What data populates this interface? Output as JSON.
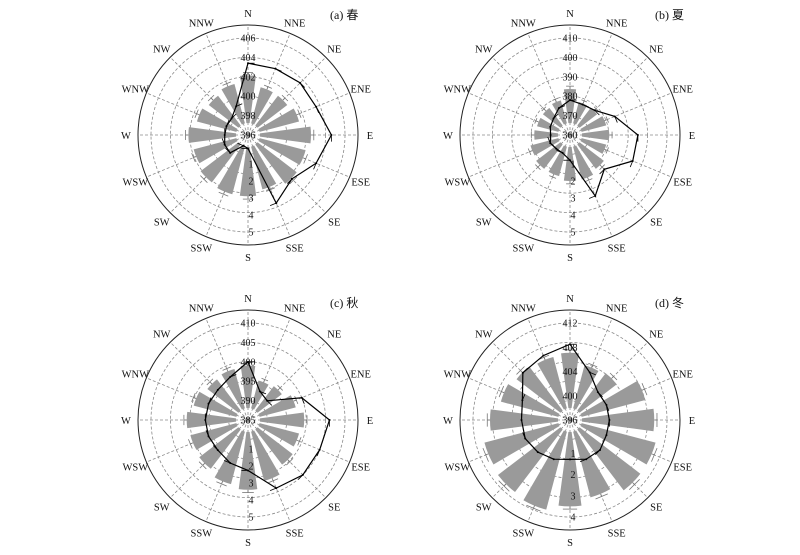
{
  "chart_data": [
    {
      "type": "polar-bar-line",
      "title": "(a) 春",
      "directions": [
        "N",
        "NNE",
        "NE",
        "ENE",
        "E",
        "ESE",
        "SE",
        "SSE",
        "S",
        "SSW",
        "SW",
        "WSW",
        "W",
        "WNW",
        "NW",
        "NNW"
      ],
      "radial_ticks": [
        "396",
        "398",
        "400",
        "402",
        "404",
        "406"
      ],
      "radial_range": [
        396,
        406
      ],
      "bar_ticks": [
        "1",
        "2",
        "3",
        "4",
        "5"
      ],
      "bar_range": [
        0,
        5
      ],
      "bar_values": [
        2.8,
        2.2,
        2.2,
        2.4,
        3.0,
        2.8,
        2.9,
        2.6,
        2.9,
        2.9,
        2.8,
        2.6,
        2.8,
        2.4,
        2.2,
        2.4
      ],
      "line_values": [
        403.4,
        403.4,
        403.6,
        403.6,
        404.6,
        403.6,
        402.4,
        403.6,
        397.4,
        397.2,
        398.6,
        398.6,
        398.4,
        398.4,
        398.4,
        399.2
      ],
      "bar_color": "#9a9a9a",
      "line_color": "#000000"
    },
    {
      "type": "polar-bar-line",
      "title": "(b) 夏",
      "directions": [
        "N",
        "NNE",
        "NE",
        "ENE",
        "E",
        "ESE",
        "SE",
        "SSE",
        "S",
        "SSW",
        "SW",
        "WSW",
        "W",
        "WNW",
        "NW",
        "NNW"
      ],
      "radial_ticks": [
        "360",
        "370",
        "380",
        "390",
        "400",
        "410"
      ],
      "radial_range": [
        360,
        410
      ],
      "bar_ticks": [
        "1",
        "2",
        "3",
        "4",
        "5"
      ],
      "bar_range": [
        0,
        5
      ],
      "bar_values": [
        2.0,
        1.3,
        1.3,
        1.5,
        1.6,
        1.5,
        1.8,
        2.0,
        2.0,
        1.8,
        1.8,
        1.7,
        1.4,
        1.3,
        1.3,
        1.4
      ],
      "line_values": [
        378,
        377,
        378,
        385,
        395,
        395,
        385,
        394,
        373,
        370,
        370,
        371,
        370,
        371,
        372,
        375
      ],
      "bar_color": "#9a9a9a",
      "line_color": "#000000"
    },
    {
      "type": "polar-bar-line",
      "title": "(c) 秋",
      "directions": [
        "N",
        "NNE",
        "NE",
        "ENE",
        "E",
        "ESE",
        "SE",
        "SSE",
        "S",
        "SSW",
        "SW",
        "WSW",
        "W",
        "WNW",
        "NW",
        "NNW"
      ],
      "radial_ticks": [
        "385",
        "390",
        "395",
        "400",
        "405",
        "410"
      ],
      "radial_range": [
        385,
        410
      ],
      "bar_ticks": [
        "1",
        "2",
        "3",
        "4",
        "5"
      ],
      "bar_range": [
        0,
        5
      ],
      "bar_values": [
        2.5,
        1.7,
        1.8,
        2.2,
        2.6,
        2.4,
        2.6,
        3.0,
        3.4,
        3.2,
        2.9,
        2.8,
        2.9,
        2.6,
        2.3,
        2.4
      ],
      "line_values": [
        400,
        393,
        392,
        400,
        406,
        405,
        405,
        404,
        398,
        397,
        396,
        396,
        396,
        396,
        396,
        397
      ],
      "bar_color": "#9a9a9a",
      "line_color": "#000000"
    },
    {
      "type": "polar-bar-line",
      "title": "(d) 冬",
      "directions": [
        "N",
        "NNE",
        "NE",
        "ENE",
        "E",
        "ESE",
        "SE",
        "SSE",
        "S",
        "SSW",
        "SW",
        "WSW",
        "W",
        "WNW",
        "NW",
        "NNW"
      ],
      "radial_ticks": [
        "396",
        "400",
        "404",
        "408",
        "412"
      ],
      "radial_range": [
        396,
        412
      ],
      "bar_ticks": [
        "1",
        "2",
        "3",
        "4"
      ],
      "bar_range": [
        0,
        4
      ],
      "bar_values": [
        2.6,
        2.1,
        2.2,
        3.1,
        3.4,
        3.6,
        3.6,
        3.2,
        3.5,
        3.8,
        3.7,
        3.6,
        3.2,
        2.8,
        2.6,
        2.5
      ],
      "line_values": [
        408.5,
        404.5,
        402.5,
        402.5,
        402.5,
        402.5,
        403.0,
        403.0,
        402.5,
        403.0,
        403.5,
        404.0,
        404.0,
        404.5,
        407.0,
        407.5
      ],
      "bar_color": "#9a9a9a",
      "line_color": "#000000"
    }
  ]
}
